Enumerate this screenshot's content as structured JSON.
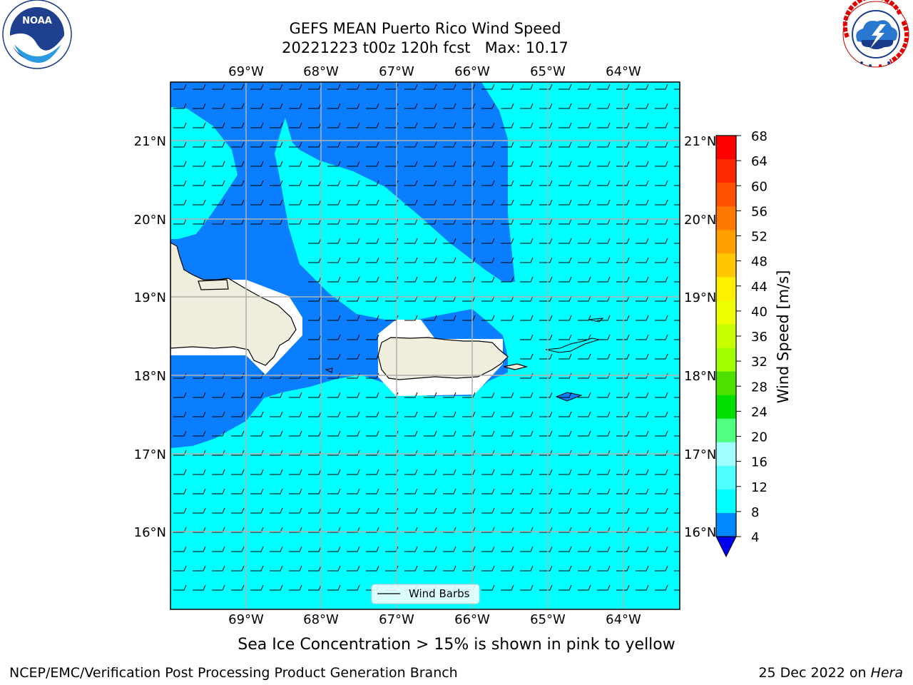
{
  "title_line1": "GEFS MEAN Puerto Rico Wind Speed",
  "title_line2": "20221223 t00z 120h fcst   Max: 10.17",
  "lon_labels": [
    "69°W",
    "68°W",
    "67°W",
    "66°W",
    "65°W",
    "64°W"
  ],
  "lat_labels": [
    "21°N",
    "20°N",
    "19°N",
    "18°N",
    "17°N",
    "16°N"
  ],
  "legend_label": "Wind Barbs",
  "colorbar": {
    "label": "Wind Speed [m/s]",
    "ticks": [
      "68",
      "64",
      "60",
      "56",
      "52",
      "48",
      "44",
      "40",
      "36",
      "32",
      "28",
      "24",
      "20",
      "16",
      "12",
      "8",
      "4"
    ],
    "colors_top_to_bottom": [
      "#ff0000",
      "#ff2800",
      "#ff5000",
      "#ff7800",
      "#ffa000",
      "#ffc800",
      "#fff000",
      "#f0ff00",
      "#c8ff00",
      "#a0ff00",
      "#50e000",
      "#00e000",
      "#50ff80",
      "#a0ffff",
      "#50ffff",
      "#00ffff",
      "#0088ff"
    ],
    "extend_color": "#0000ee"
  },
  "colors": {
    "ocean_light": "#00ffff",
    "ocean_dark": "#0a7eff",
    "land": "#efeedd",
    "masked": "#ffffff"
  },
  "caption": "Sea Ice Concentration > 15% is shown in pink to yellow",
  "credit": "NCEP/EMC/Verification Post Processing Product Generation Branch",
  "stamp_date": "25 Dec 2022 on ",
  "stamp_machine": "Hera",
  "logos": {
    "noaa": {
      "icon": "noaa-logo",
      "text": "NOAA"
    },
    "nws": {
      "icon": "nws-logo"
    }
  }
}
